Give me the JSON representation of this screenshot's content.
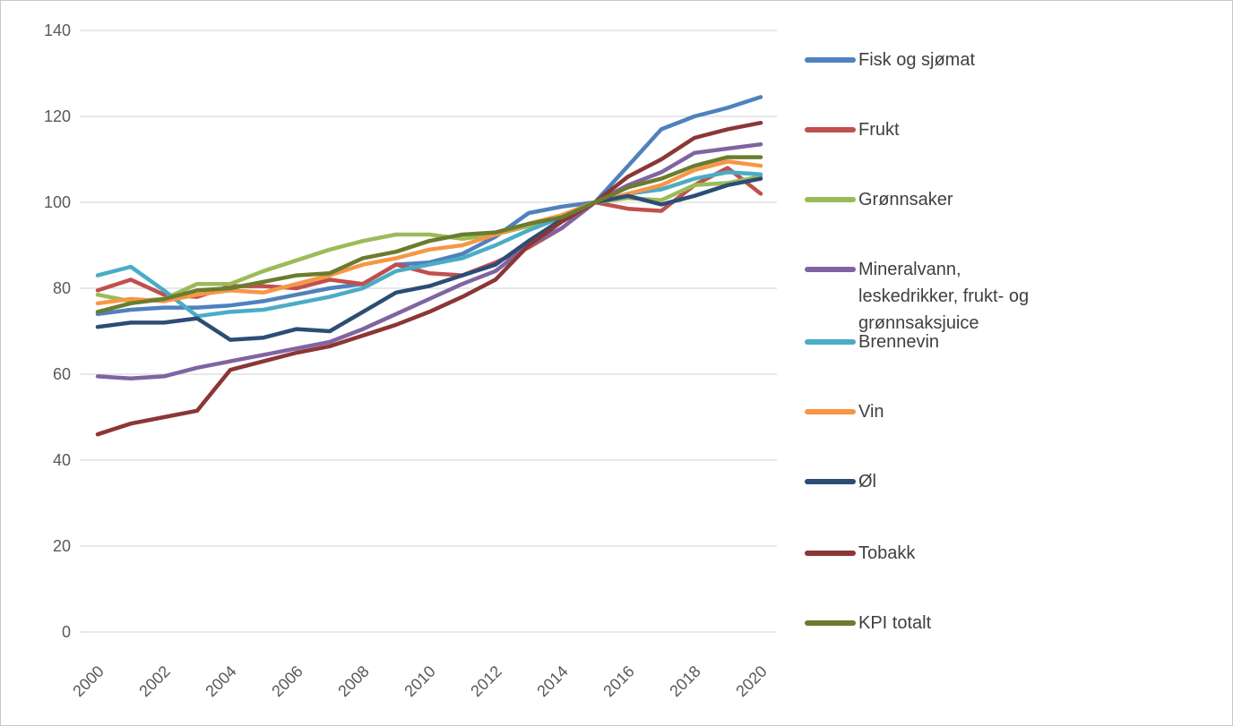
{
  "page": {
    "background_color": "#ffffff",
    "border_color": "#c8c8c8"
  },
  "chart_data": {
    "type": "line",
    "title": "",
    "xlabel": "",
    "ylabel": "",
    "x": [
      2000,
      2001,
      2002,
      2003,
      2004,
      2005,
      2006,
      2007,
      2008,
      2009,
      2010,
      2011,
      2012,
      2013,
      2014,
      2015,
      2016,
      2017,
      2018,
      2019,
      2020
    ],
    "x_tick_labels": [
      "2000",
      "2002",
      "2004",
      "2006",
      "2008",
      "2010",
      "2012",
      "2014",
      "2016",
      "2018",
      "2020"
    ],
    "ylim": [
      0,
      140
    ],
    "ytick_step": 20,
    "ytick_labels": [
      "0",
      "20",
      "40",
      "60",
      "80",
      "100",
      "120",
      "140"
    ],
    "grid": true,
    "legend_position": "right",
    "axis_label_color": "#595959",
    "gridline_color": "#d9d9d9",
    "legend_text_color": "#3f3f3f",
    "index_note_visible": false,
    "series": [
      {
        "name": "Fisk og sjømat",
        "color": "#4F81BD",
        "values": [
          74,
          75,
          75.5,
          75.5,
          76,
          77,
          78.5,
          80,
          81,
          85.5,
          86,
          88,
          92,
          97.5,
          99,
          100,
          108.5,
          117,
          120,
          122,
          124.5
        ]
      },
      {
        "name": "Frukt",
        "color": "#C0504D",
        "values": [
          79.5,
          82,
          78.5,
          78,
          80.5,
          80.5,
          80,
          82,
          81,
          85.5,
          83.5,
          83,
          86,
          89.5,
          94,
          100,
          98.5,
          98,
          104,
          108,
          102
        ]
      },
      {
        "name": "Grønnsaker",
        "color": "#9BBB59",
        "values": [
          78.5,
          77,
          77.5,
          81,
          81,
          84,
          86.5,
          89,
          91,
          92.5,
          92.5,
          91.5,
          92.5,
          94.5,
          97,
          100,
          101,
          100.5,
          104,
          104.5,
          106
        ]
      },
      {
        "name": "Mineralvann, leskedrikker, frukt- og grønnsaksjuice",
        "color": "#8064A2",
        "values": [
          59.5,
          59,
          59.5,
          61.5,
          63,
          64.5,
          66,
          67.5,
          70.5,
          74,
          77.5,
          81,
          84,
          90,
          94,
          100,
          104,
          107,
          111.5,
          112.5,
          113.5
        ]
      },
      {
        "name": "Brennevin",
        "color": "#4BACC6",
        "values": [
          83,
          85,
          79.5,
          73.5,
          74.5,
          75,
          76.5,
          78,
          80,
          84,
          85.5,
          87,
          90,
          93.5,
          96.5,
          100,
          102,
          103,
          105.5,
          107,
          106.5
        ]
      },
      {
        "name": "Vin",
        "color": "#F79646",
        "values": [
          76.5,
          77.5,
          77,
          78.5,
          79.5,
          79,
          81,
          83,
          85.5,
          87,
          89,
          90,
          92.5,
          95,
          97,
          100,
          102,
          104,
          107.5,
          109.5,
          108.5
        ]
      },
      {
        "name": "Øl",
        "color": "#2C4D75",
        "values": [
          71,
          72,
          72,
          73,
          68,
          68.5,
          70.5,
          70,
          74.5,
          79,
          80.5,
          83,
          85.5,
          91,
          96,
          100,
          101.5,
          99.5,
          101.5,
          104,
          105.5
        ]
      },
      {
        "name": "Tobakk",
        "color": "#8C3636",
        "values": [
          46,
          48.5,
          50,
          51.5,
          61,
          63,
          65,
          66.5,
          69,
          71.5,
          74.5,
          78,
          82,
          90,
          95.5,
          100,
          106,
          110,
          115,
          117,
          118.5
        ]
      },
      {
        "name": "KPI totalt",
        "color": "#6B7C2E",
        "values": [
          74.5,
          76.5,
          77.5,
          79.5,
          80,
          81.5,
          83,
          83.5,
          87,
          88.5,
          91,
          92.5,
          93,
          95,
          96.5,
          100,
          103.5,
          105.5,
          108.5,
          110.5,
          110.5
        ]
      }
    ]
  }
}
